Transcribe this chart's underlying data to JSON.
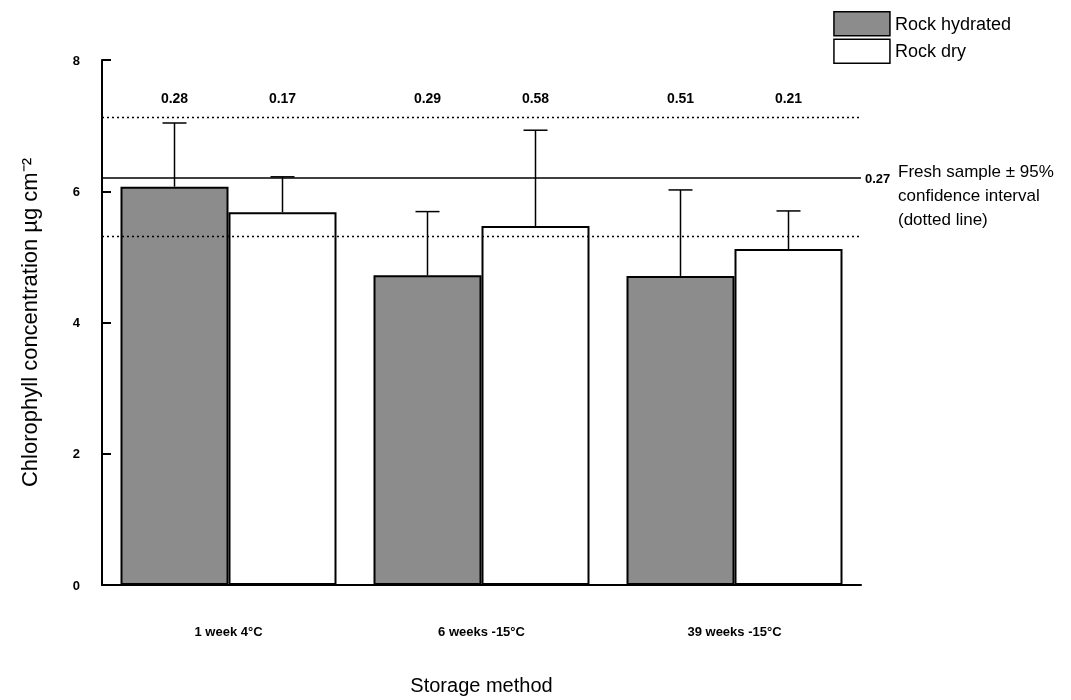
{
  "chart_data": {
    "type": "bar",
    "xlabel": "Storage method",
    "ylabel": "Chlorophyll concentration µg cm⁻²",
    "categories": [
      "1 week 4°C",
      "6 weeks -15°C",
      "39 weeks -15°C"
    ],
    "series": [
      {
        "name": "Rock hydrated",
        "color": "#8c8c8c",
        "values": [
          6.07,
          4.72,
          4.71
        ],
        "errors": [
          [
            6.07,
            7.04
          ],
          [
            4.72,
            5.69
          ],
          [
            4.71,
            6.02
          ]
        ]
      },
      {
        "name": "Rock dry",
        "color": "#ffffff",
        "values": [
          5.68,
          5.47,
          5.12
        ],
        "errors": [
          [
            5.68,
            6.22
          ],
          [
            5.47,
            6.93
          ],
          [
            5.12,
            5.7
          ]
        ]
      }
    ],
    "ylim": [
      0,
      8
    ],
    "yticks": [
      0,
      2,
      4,
      6,
      8
    ],
    "grid": false,
    "legend": "top right",
    "ref_lines": [
      {
        "axis": "y",
        "value": 6.2,
        "label": null,
        "color": "#000000",
        "line_style": "solid"
      },
      {
        "axis": "y",
        "value": 7.13,
        "label": null,
        "color": "#000000",
        "line_style": "dotted"
      },
      {
        "axis": "y",
        "value": 5.32,
        "label": null,
        "color": "#000000",
        "line_style": "dotted"
      }
    ],
    "annotations": [
      "Fresh sample ± 95% confidence interval (dotted line)",
      "0.28",
      "0.17",
      "0.29",
      "0.58",
      "0.51",
      "0.21",
      "0.27"
    ]
  }
}
